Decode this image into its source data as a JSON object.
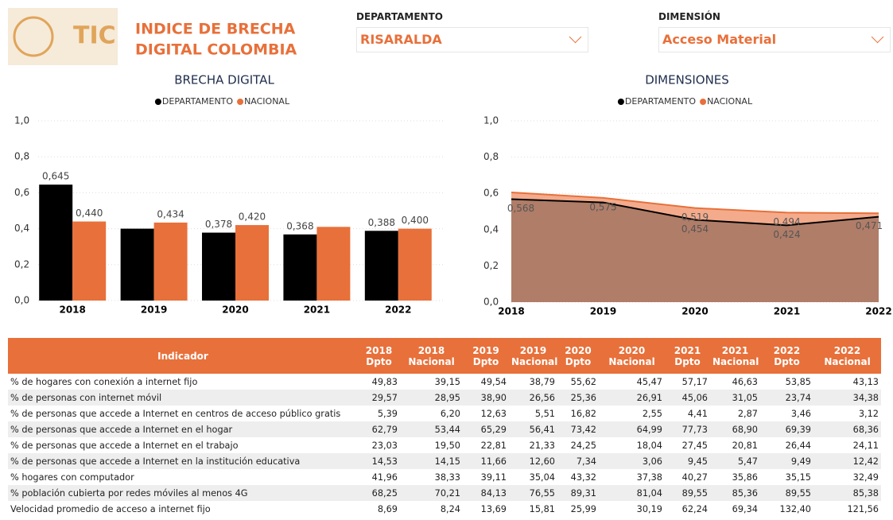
{
  "header": {
    "logo_text": "TIC",
    "title_line1": "INDICE DE BRECHA",
    "title_line2": "DIGITAL COLOMBIA"
  },
  "filters": [
    {
      "label": "DEPARTAMENTO",
      "value": "RISARALDA"
    },
    {
      "label": "DIMENSIÓN",
      "value": "Acceso Material"
    }
  ],
  "chart_data": [
    {
      "type": "bar",
      "title": "BRECHA DIGITAL",
      "categories": [
        "2018",
        "2019",
        "2020",
        "2021",
        "2022"
      ],
      "series": [
        {
          "name": "DEPARTAMENTO",
          "color": "#000000",
          "values": [
            0.645,
            0.4,
            0.378,
            0.368,
            0.388
          ],
          "value_labels": [
            "0,645",
            null,
            "0,378",
            "0,368",
            "0,388"
          ]
        },
        {
          "name": "NACIONAL",
          "color": "#e8703a",
          "values": [
            0.44,
            0.434,
            0.42,
            0.41,
            0.4
          ],
          "value_labels": [
            "0,440",
            "0,434",
            "0,420",
            null,
            "0,400"
          ]
        }
      ],
      "ylim": [
        0,
        1.0
      ],
      "yticks": [
        {
          "value": 0,
          "label": "0,0"
        },
        {
          "value": 0.2,
          "label": "0,2"
        },
        {
          "value": 0.4,
          "label": "0,4"
        },
        {
          "value": 0.6,
          "label": "0,6"
        },
        {
          "value": 0.8,
          "label": "0,8"
        },
        {
          "value": 1.0,
          "label": "1,0"
        }
      ],
      "grid": true,
      "legend": "top"
    },
    {
      "type": "area",
      "title": "DIMENSIONES",
      "categories": [
        "2018",
        "2019",
        "2020",
        "2021",
        "2022"
      ],
      "series": [
        {
          "name": "DEPARTAMENTO",
          "color": "#000000",
          "fill": "#b07d68",
          "values": [
            0.568,
            0.55,
            0.454,
            0.424,
            0.471
          ],
          "value_labels": [
            "0,568",
            null,
            "0,454",
            "0,424",
            "0,471"
          ]
        },
        {
          "name": "NACIONAL",
          "color": "#e8703a",
          "fill": "#f3ab8c",
          "values": [
            0.605,
            0.575,
            0.519,
            0.494,
            0.49
          ],
          "value_labels": [
            null,
            "0,575",
            "0,519",
            "0,494",
            null
          ]
        }
      ],
      "ylim": [
        0,
        1.0
      ],
      "yticks": [
        {
          "value": 0,
          "label": "0,0"
        },
        {
          "value": 0.2,
          "label": "0,2"
        },
        {
          "value": 0.4,
          "label": "0,4"
        },
        {
          "value": 0.6,
          "label": "0,6"
        },
        {
          "value": 0.8,
          "label": "0,8"
        },
        {
          "value": 1.0,
          "label": "1,0"
        }
      ],
      "grid": true,
      "legend": "top"
    }
  ],
  "table": {
    "columns": [
      "Indicador",
      "2018 Dpto",
      "2018 Nacional",
      "2019 Dpto",
      "2019 Nacional",
      "2020 Dpto",
      "2020 Nacional",
      "2021 Dpto",
      "2021 Nacional",
      "2022 Dpto",
      "2022 Nacional"
    ],
    "rows": [
      [
        "% de hogares con conexión a internet fijo",
        "49,83",
        "39,15",
        "49,54",
        "38,79",
        "55,62",
        "45,47",
        "57,17",
        "46,63",
        "53,85",
        "43,13"
      ],
      [
        "% de personas con internet móvil",
        "29,57",
        "28,95",
        "38,90",
        "26,56",
        "25,36",
        "26,91",
        "45,06",
        "31,05",
        "23,74",
        "34,38"
      ],
      [
        "% de personas que accede a Internet en centros de acceso público gratis",
        "5,39",
        "6,20",
        "12,63",
        "5,51",
        "16,82",
        "2,55",
        "4,41",
        "2,87",
        "3,46",
        "3,12"
      ],
      [
        "% de personas que accede a Internet en el hogar",
        "62,79",
        "53,44",
        "65,29",
        "56,41",
        "73,42",
        "64,99",
        "77,73",
        "68,90",
        "69,39",
        "68,36"
      ],
      [
        "% de personas que accede a Internet en el trabajo",
        "23,03",
        "19,50",
        "22,81",
        "21,33",
        "24,25",
        "18,04",
        "27,45",
        "20,81",
        "26,44",
        "24,11"
      ],
      [
        "% de personas que accede a Internet en la institución educativa",
        "14,53",
        "14,15",
        "11,66",
        "12,60",
        "7,34",
        "3,06",
        "9,45",
        "5,47",
        "9,49",
        "12,42"
      ],
      [
        "% hogares con computador",
        "41,96",
        "38,33",
        "39,11",
        "35,04",
        "43,32",
        "37,38",
        "40,27",
        "35,86",
        "35,15",
        "32,49"
      ],
      [
        "% población cubierta por redes móviles al menos 4G",
        "68,25",
        "70,21",
        "84,13",
        "76,55",
        "89,31",
        "81,04",
        "89,55",
        "85,36",
        "89,55",
        "85,38"
      ],
      [
        "Velocidad promedio de acceso a internet fijo",
        "8,69",
        "8,24",
        "13,69",
        "15,81",
        "25,99",
        "30,19",
        "62,24",
        "69,34",
        "132,40",
        "121,56"
      ]
    ]
  }
}
